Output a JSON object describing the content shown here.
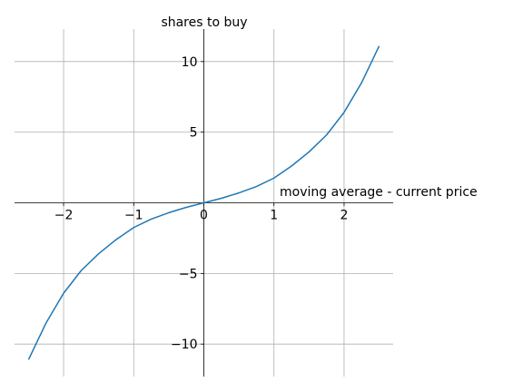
{
  "chart_data": {
    "type": "line",
    "title": "",
    "xlabel": "moving average - current price",
    "ylabel": "shares to buy",
    "xlim": [
      -2.7,
      2.7
    ],
    "ylim": [
      -12.3,
      12.3
    ],
    "x_ticks": [
      -2,
      -1,
      0,
      1,
      2
    ],
    "x_tick_labels": [
      "−2",
      "−1",
      "0",
      "1",
      "2"
    ],
    "y_ticks": [
      -10,
      -5,
      5,
      10
    ],
    "y_tick_labels": [
      "−10",
      "−5",
      "5",
      "10"
    ],
    "grid": true,
    "spines": "centered at origin",
    "line_color": "#1f77b4",
    "series": [
      {
        "x": [
          -2.5,
          -2.25,
          -2.0,
          -1.75,
          -1.5,
          -1.25,
          -1.0,
          -0.75,
          -0.5,
          -0.25,
          0.0,
          0.25,
          0.5,
          0.75,
          1.0,
          1.25,
          1.5,
          1.75,
          2.0,
          2.25,
          2.5
        ],
        "y": [
          -11.1,
          -8.5,
          -6.4,
          -4.8,
          -3.6,
          -2.6,
          -1.75,
          -1.15,
          -0.7,
          -0.32,
          0.0,
          0.32,
          0.7,
          1.15,
          1.75,
          2.6,
          3.6,
          4.8,
          6.4,
          8.5,
          11.1
        ]
      }
    ]
  }
}
